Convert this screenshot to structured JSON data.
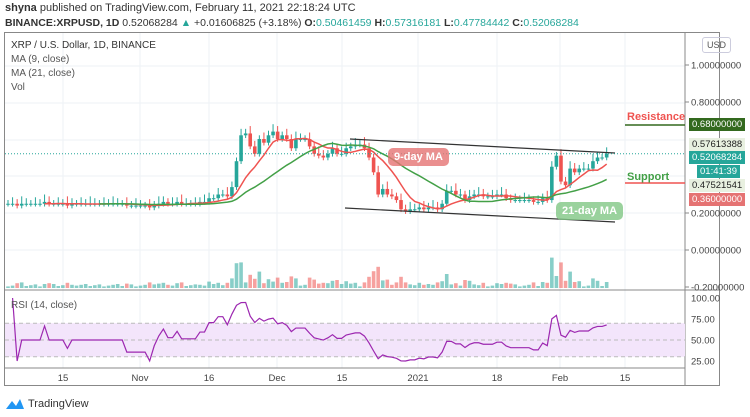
{
  "header": {
    "author": "shyna",
    "published": "published on TradingView.com, February 11, 2021 22:18:24 UTC",
    "symbol": "BINANCE:XRPUSD, 1D",
    "last": "0.52068284",
    "change": "+0.01606825 (+3.18%)",
    "o_label": "O:",
    "o": "0.50461459",
    "h_label": "H:",
    "h": "0.57316181",
    "l_label": "L:",
    "l": "0.47784442",
    "c_label": "C:",
    "c": "0.52068284"
  },
  "legend": {
    "title": "XRP / U.S. Dollar, 1D, BINANCE",
    "ma9": "MA (9, close)",
    "ma21": "MA (21, close)",
    "vol": "Vol",
    "rsi": "RSI (14, close)"
  },
  "currency": "USD",
  "price_axis": [
    "1.00000000",
    "0.80000000",
    "0.20000000",
    "0.00000000",
    "-0.20000000"
  ],
  "rsi_axis": [
    "100.00",
    "75.00",
    "50.00",
    "25.00"
  ],
  "time_axis": [
    "15",
    "Nov",
    "16",
    "Dec",
    "15",
    "2021",
    "18",
    "Feb",
    "15"
  ],
  "price_labels": {
    "resistance": "0.68000000",
    "high": "0.57613388",
    "last": "0.52068284",
    "countdown": "01:41:39",
    "low": "0.47521541",
    "support": "0.36000000"
  },
  "annotations": {
    "resistance": "Resistance",
    "support": "Support",
    "ma9": "9-day MA",
    "ma21": "21-day MA"
  },
  "colors": {
    "up": "#26a69a",
    "down": "#ef5350",
    "ma9": "#ef5350",
    "ma21": "#43a047",
    "rsi": "#9c27b0",
    "resistance_bg": "#33691e"
  },
  "footer": {
    "brand": "TradingView"
  },
  "chart_data": {
    "type": "candlestick",
    "start": "2020-10-03",
    "interval": "1D",
    "closes": [
      0.25,
      0.25,
      0.24,
      0.25,
      0.25,
      0.25,
      0.25,
      0.25,
      0.26,
      0.25,
      0.25,
      0.25,
      0.25,
      0.24,
      0.25,
      0.25,
      0.25,
      0.25,
      0.25,
      0.25,
      0.25,
      0.25,
      0.25,
      0.25,
      0.25,
      0.25,
      0.24,
      0.24,
      0.24,
      0.24,
      0.24,
      0.23,
      0.24,
      0.25,
      0.26,
      0.25,
      0.25,
      0.26,
      0.25,
      0.25,
      0.25,
      0.25,
      0.26,
      0.26,
      0.28,
      0.28,
      0.3,
      0.3,
      0.29,
      0.34,
      0.48,
      0.62,
      0.63,
      0.56,
      0.52,
      0.6,
      0.58,
      0.62,
      0.64,
      0.6,
      0.62,
      0.6,
      0.55,
      0.6,
      0.6,
      0.6,
      0.56,
      0.52,
      0.51,
      0.5,
      0.52,
      0.55,
      0.52,
      0.52,
      0.55,
      0.56,
      0.57,
      0.57,
      0.55,
      0.5,
      0.42,
      0.3,
      0.33,
      0.3,
      0.29,
      0.27,
      0.22,
      0.21,
      0.22,
      0.22,
      0.23,
      0.22,
      0.23,
      0.23,
      0.22,
      0.25,
      0.32,
      0.32,
      0.3,
      0.3,
      0.27,
      0.29,
      0.3,
      0.3,
      0.29,
      0.29,
      0.29,
      0.3,
      0.3,
      0.28,
      0.27,
      0.27,
      0.27,
      0.27,
      0.27,
      0.26,
      0.26,
      0.28,
      0.27,
      0.45,
      0.51,
      0.37,
      0.35,
      0.44,
      0.42,
      0.44,
      0.44,
      0.44,
      0.48,
      0.5,
      0.5,
      0.52
    ],
    "indicators": [
      "MA 9",
      "MA 21",
      "Volume",
      "RSI 14"
    ],
    "rsi_bands": [
      30,
      70
    ],
    "price_range": [
      -0.2,
      1.05
    ],
    "rsi_range": [
      25,
      100
    ]
  }
}
